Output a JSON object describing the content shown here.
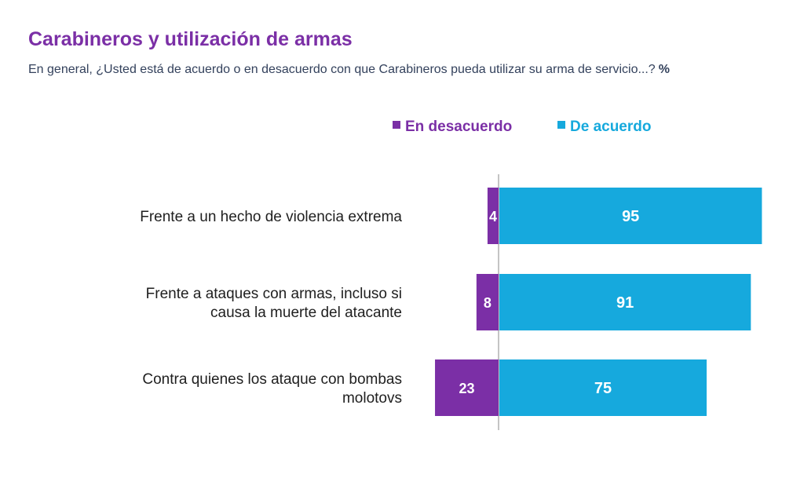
{
  "header": {
    "title": "Carabineros y utilización de armas",
    "subtitle": "En general, ¿Usted está de acuerdo o en desacuerdo con que Carabineros pueda utilizar su arma de servicio...?",
    "unit": "%"
  },
  "colors": {
    "disagree": "#7b2fa6",
    "agree": "#16a9dd",
    "label_text": "#1f1f1f",
    "axis": "#b0b0b0"
  },
  "chart_data": {
    "type": "bar",
    "orientation": "horizontal-diverging",
    "categories": [
      [
        "Frente a un hecho de violencia extrema"
      ],
      [
        "Frente a ataques con armas, incluso si",
        "causa la muerte del atacante"
      ],
      [
        "Contra quienes los ataque con bombas",
        "molotovs"
      ]
    ],
    "series": [
      {
        "name": "En desacuerdo",
        "values": [
          4,
          8,
          23
        ]
      },
      {
        "name": "De acuerdo",
        "values": [
          95,
          91,
          75
        ]
      }
    ],
    "legend_position": "top-center",
    "grid": false
  }
}
